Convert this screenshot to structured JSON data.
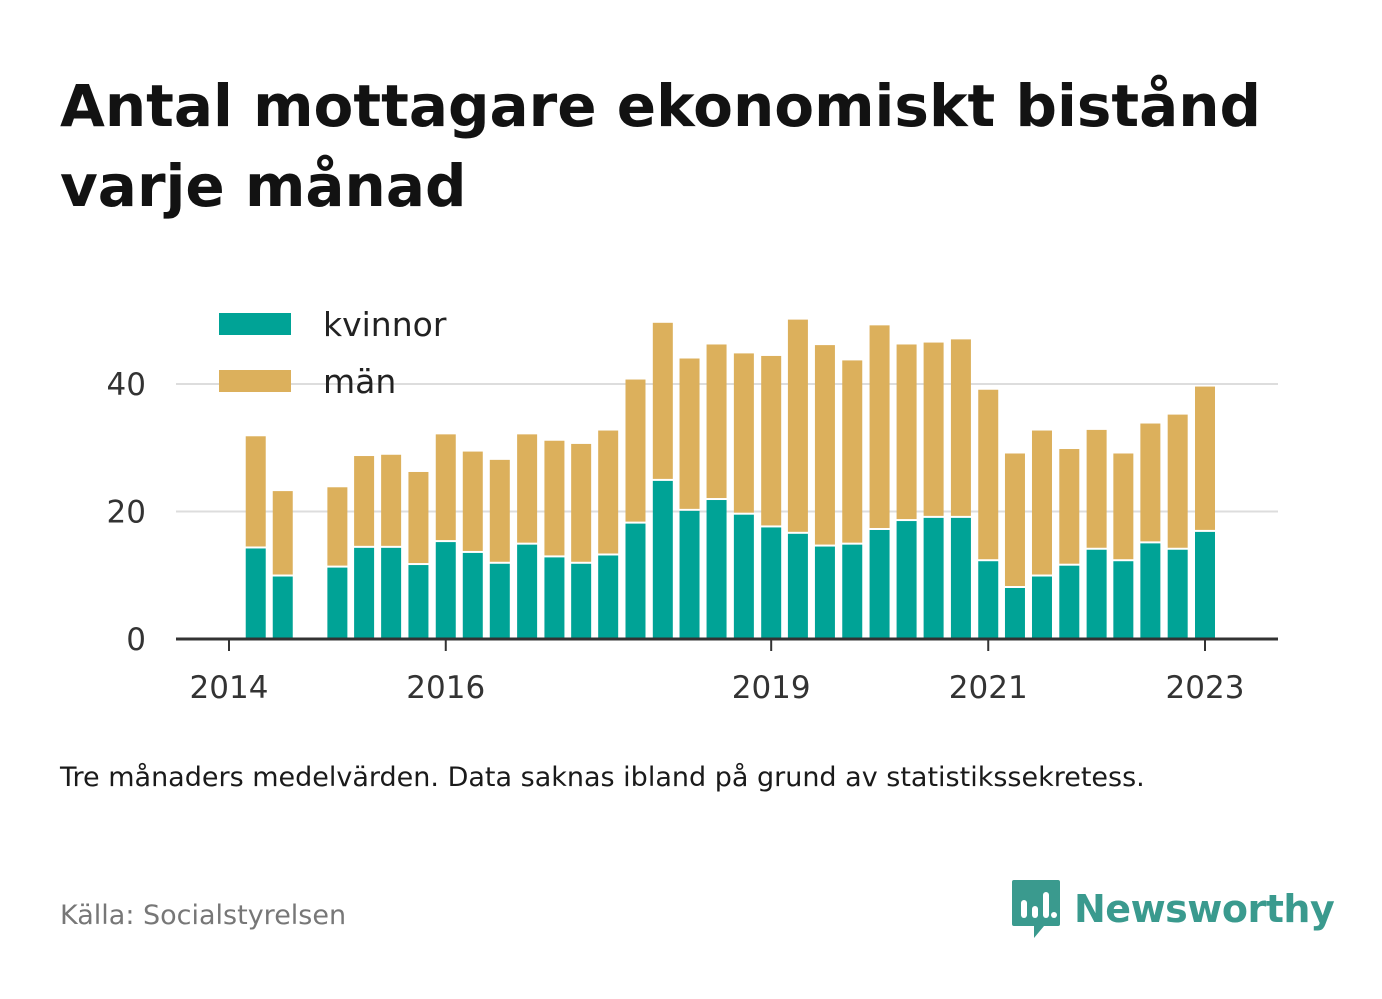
{
  "title": "Antal mottagare ekonomiskt bistånd varje månad",
  "note": "Tre månaders medelvärden. Data saknas ibland på grund av statistikssekretess.",
  "source": "Källa: Socialstyrelsen",
  "brand": {
    "name": "Newsworthy",
    "icon": "newsworthy-logo-icon",
    "color": "#3a9a8e"
  },
  "colors": {
    "kvinnor": "#00a396",
    "man": "#dcb05c",
    "grid": "#dddddd",
    "axis": "#333333"
  },
  "chart_data": {
    "type": "bar",
    "stacked": true,
    "x_ticks": [
      "2014",
      "2016",
      "2019",
      "2021",
      "2023"
    ],
    "y_ticks": [
      "0",
      "20",
      "40"
    ],
    "ylim": [
      0,
      50
    ],
    "grid": "horizontal",
    "legend_position": "top-left",
    "x": [
      "2014-04",
      "2014-07",
      "2014-10",
      "2015-01",
      "2015-04",
      "2015-07",
      "2015-10",
      "2016-01",
      "2016-04",
      "2016-07",
      "2016-10",
      "2017-01",
      "2017-04",
      "2017-07",
      "2017-10",
      "2018-01",
      "2018-04",
      "2018-07",
      "2018-10",
      "2019-01",
      "2019-04",
      "2019-07",
      "2019-10",
      "2020-01",
      "2020-04",
      "2020-07",
      "2020-10",
      "2021-01",
      "2021-04",
      "2021-07",
      "2021-10",
      "2022-01",
      "2022-04",
      "2022-07",
      "2022-10",
      "2023-01",
      "2023-04"
    ],
    "series": [
      {
        "name": "kvinnor",
        "values": [
          14.2,
          9.8,
          null,
          11.2,
          14.3,
          14.3,
          11.6,
          15.2,
          13.5,
          11.8,
          14.8,
          12.8,
          11.8,
          13.1,
          18.1,
          24.8,
          20.1,
          21.8,
          19.5,
          17.5,
          16.5,
          14.5,
          14.8,
          17.1,
          18.5,
          19.0,
          19.0,
          12.2,
          8.0,
          9.8,
          11.5,
          14.0,
          12.2,
          15.0,
          14.0,
          16.8,
          null
        ]
      },
      {
        "name": "män",
        "values": [
          17.6,
          13.4,
          null,
          12.6,
          14.4,
          14.6,
          14.6,
          16.9,
          15.9,
          16.3,
          17.3,
          18.3,
          18.8,
          19.6,
          22.6,
          24.8,
          23.9,
          24.4,
          25.3,
          26.9,
          33.6,
          31.6,
          28.9,
          32.1,
          27.7,
          27.5,
          28.0,
          26.9,
          21.1,
          22.9,
          18.3,
          18.8,
          16.9,
          18.8,
          21.2,
          22.8,
          null
        ]
      }
    ],
    "legend": [
      "kvinnor",
      "män"
    ]
  }
}
